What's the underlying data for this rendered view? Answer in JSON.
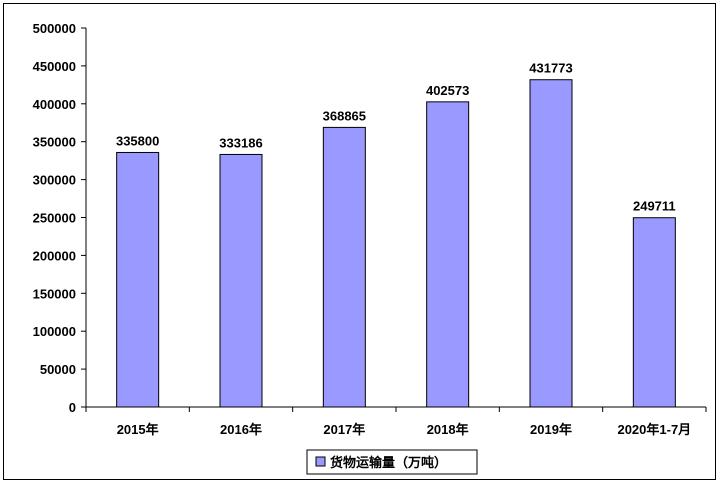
{
  "chart_data": {
    "type": "bar",
    "categories": [
      "2015年",
      "2016年",
      "2017年",
      "2018年",
      "2019年",
      "2020年1-7月"
    ],
    "series": [
      {
        "name": "货物运输量（万吨）",
        "values": [
          335800,
          333186,
          368865,
          402573,
          431773,
          249711
        ],
        "data_labels": [
          "335800",
          "333186",
          "368865",
          "402573",
          "431773",
          "249711"
        ],
        "color": "#9999ff"
      }
    ],
    "ylim": [
      0,
      500000
    ],
    "yticks": [
      0,
      50000,
      100000,
      150000,
      200000,
      250000,
      300000,
      350000,
      400000,
      450000,
      500000
    ],
    "ytick_labels": [
      "0",
      "50000",
      "100000",
      "150000",
      "200000",
      "250000",
      "300000",
      "350000",
      "400000",
      "450000",
      "500000"
    ],
    "grid": false,
    "legend_position": "bottom"
  }
}
